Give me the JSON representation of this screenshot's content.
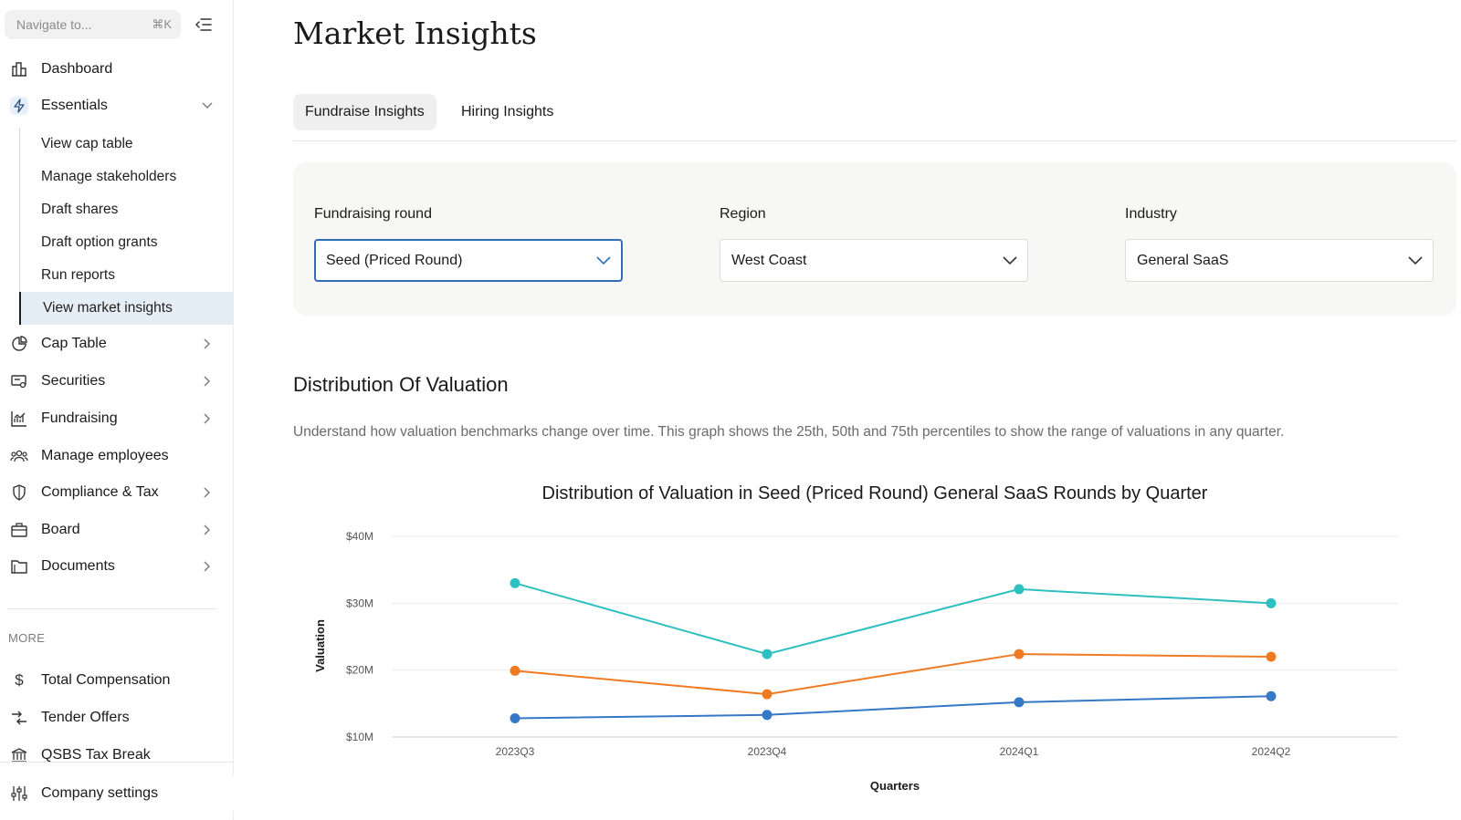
{
  "sidebar": {
    "search": {
      "placeholder": "Navigate to...",
      "shortcut": "⌘K"
    },
    "items": [
      {
        "label": "Dashboard"
      },
      {
        "label": "Essentials"
      },
      {
        "label": "Cap Table"
      },
      {
        "label": "Securities"
      },
      {
        "label": "Fundraising"
      },
      {
        "label": "Manage employees"
      },
      {
        "label": "Compliance & Tax"
      },
      {
        "label": "Board"
      },
      {
        "label": "Documents"
      }
    ],
    "essentials_sub": [
      {
        "label": "View cap table"
      },
      {
        "label": "Manage stakeholders"
      },
      {
        "label": "Draft shares"
      },
      {
        "label": "Draft option grants"
      },
      {
        "label": "Run reports"
      },
      {
        "label": "View market insights"
      }
    ],
    "more_label": "MORE",
    "more_items": [
      {
        "label": "Total Compensation"
      },
      {
        "label": "Tender Offers"
      },
      {
        "label": "QSBS Tax Break"
      }
    ],
    "settings_label": "Company settings"
  },
  "main": {
    "title": "Market Insights",
    "tabs": [
      {
        "label": "Fundraise Insights",
        "active": true
      },
      {
        "label": "Hiring Insights",
        "active": false
      }
    ],
    "filters": [
      {
        "label": "Fundraising round",
        "value": "Seed (Priced Round)"
      },
      {
        "label": "Region",
        "value": "West Coast"
      },
      {
        "label": "Industry",
        "value": "General SaaS"
      }
    ],
    "section_title": "Distribution Of Valuation",
    "section_desc": "Understand how valuation benchmarks change over time. This graph shows the 25th, 50th and 75th percentiles to show the range of valuations in any quarter."
  },
  "colors": {
    "accent": "#2f6db8",
    "p75": "#2ebfc0",
    "p50": "#f07a22",
    "p25": "#3478c6"
  },
  "chart_data": {
    "type": "line",
    "title": "Distribution of Valuation in Seed (Priced Round) General SaaS Rounds by Quarter",
    "xlabel": "Quarters",
    "ylabel": "Valuation",
    "categories": [
      "2023Q3",
      "2023Q4",
      "2024Q1",
      "2024Q2"
    ],
    "yticks": [
      10,
      20,
      30,
      40
    ],
    "ytick_labels": [
      "$10M",
      "$20M",
      "$30M",
      "$40M"
    ],
    "ylim": [
      10,
      40
    ],
    "grid": true,
    "series": [
      {
        "values": [
          33.0,
          22.4,
          32.1,
          30.0
        ],
        "color": "#2ebfc0"
      },
      {
        "values": [
          19.9,
          16.4,
          22.4,
          22.0
        ],
        "color": "#f07a22"
      },
      {
        "values": [
          12.8,
          13.3,
          15.2,
          16.1
        ],
        "color": "#3478c6"
      }
    ]
  }
}
